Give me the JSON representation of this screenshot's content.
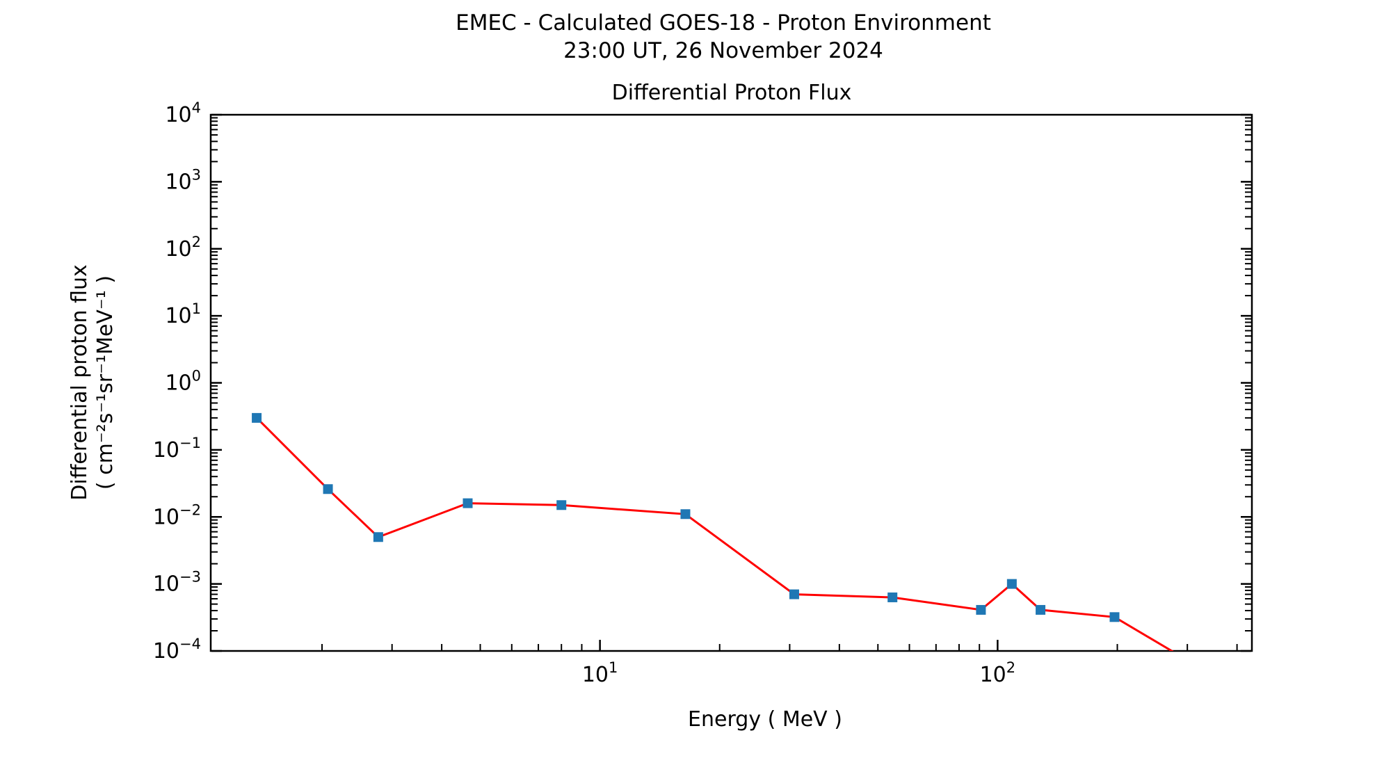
{
  "figure": {
    "suptitle_line1": "EMEC - Calculated GOES-18 - Proton Environment",
    "suptitle_line2": "23:00 UT, 26 November 2024",
    "axes_title": "Differential Proton Flux",
    "xlabel": "Energy ( MeV )",
    "ylabel_line1": "Differential proton flux",
    "ylabel_line2": "( cm⁻²s⁻¹sr⁻¹MeV⁻¹ )"
  },
  "colors": {
    "line": "#ff0000",
    "marker": "#1f77b4",
    "axis": "#000000",
    "text": "#000000",
    "background": "#ffffff"
  },
  "chart_data": {
    "type": "line",
    "title": "Differential Proton Flux",
    "xlabel": "Energy ( MeV )",
    "ylabel": "Differential proton flux ( cm⁻²s⁻¹sr⁻¹MeV⁻¹ )",
    "x_scale": "log",
    "y_scale": "log",
    "xlim": [
      1.05,
      436
    ],
    "ylim": [
      0.0001,
      10000.0
    ],
    "x_major_tick_exponents": [
      1,
      2
    ],
    "y_major_tick_exponents": [
      4,
      3,
      2,
      1,
      0,
      -1,
      -2,
      -3,
      -4
    ],
    "grid": false,
    "legend": false,
    "series": [
      {
        "name": "differential proton flux",
        "marker": "square",
        "x": [
          1.37,
          2.07,
          2.77,
          4.65,
          8.0,
          16.4,
          30.8,
          54.4,
          90.8,
          108.6,
          128.2,
          196.8,
          334
        ],
        "y": [
          0.3,
          0.026,
          0.005,
          0.016,
          0.015,
          0.011,
          0.0007,
          0.00063,
          0.00041,
          0.001,
          0.00041,
          0.00032,
          5e-05
        ]
      }
    ]
  }
}
